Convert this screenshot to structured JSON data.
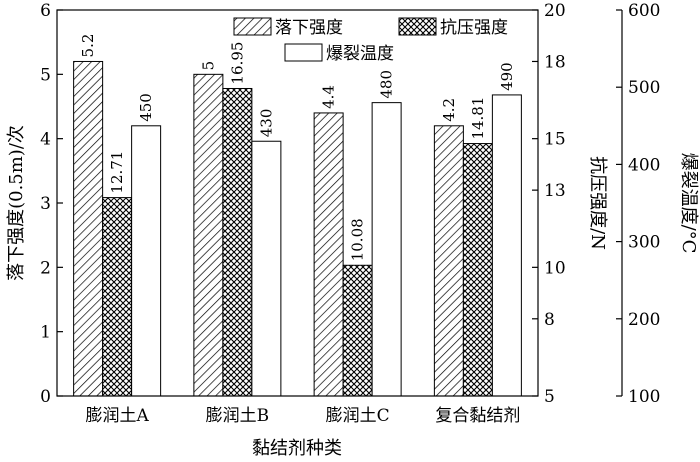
{
  "chart_data": {
    "type": "bar",
    "categories": [
      "膨润土A",
      "膨润土B",
      "膨润土C",
      "复合黏结剂"
    ],
    "xlabel": "黏结剂种类",
    "series": [
      {
        "name": "落下强度",
        "axis": "left",
        "pattern": "hatch-diagonal",
        "values": [
          5.2,
          5,
          4.4,
          4.2
        ],
        "labels": [
          "5.2",
          "5",
          "4.4",
          "4.2"
        ]
      },
      {
        "name": "抗压强度",
        "axis": "right1",
        "pattern": "crosshatch",
        "values": [
          12.71,
          16.95,
          10.08,
          14.81
        ],
        "labels": [
          "12.71",
          "16.95",
          "10.08",
          "14.81"
        ]
      },
      {
        "name": "爆裂温度",
        "axis": "right2",
        "pattern": "solid-white",
        "values": [
          450,
          430,
          480,
          490
        ],
        "labels": [
          "450",
          "430",
          "480",
          "490"
        ]
      }
    ],
    "axes": {
      "left": {
        "label": "落下强度(0.5m)/次",
        "ylim": [
          0,
          6
        ],
        "ticks": [
          "0",
          "1",
          "2",
          "3",
          "4",
          "5",
          "6"
        ]
      },
      "right1": {
        "label": "抗压强度/N",
        "ylim": [
          5,
          20
        ],
        "ticks": [
          "5",
          "8",
          "10",
          "13",
          "15",
          "18",
          "20"
        ]
      },
      "right2": {
        "label": "爆裂温度/°C",
        "ylim": [
          100,
          600
        ],
        "ticks": [
          "100",
          "200",
          "300",
          "400",
          "500",
          "600"
        ]
      }
    },
    "legend_position": "top-right",
    "grid": false
  }
}
